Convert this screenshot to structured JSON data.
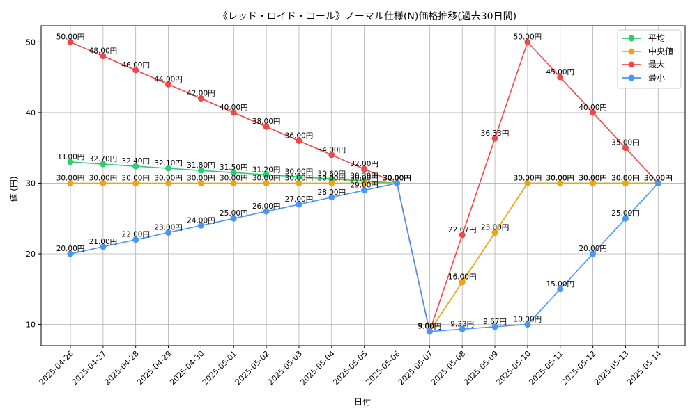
{
  "chart_data": {
    "type": "line",
    "title": "《レッド・ロイド・コール》ノーマル仕様(N)価格推移(過去30日間)",
    "xlabel": "日付",
    "ylabel": "値 (円)",
    "ylim": [
      7,
      52.3
    ],
    "yticks": [
      10,
      20,
      30,
      40,
      50
    ],
    "grid": true,
    "legend_position": "top-right",
    "label_suffix": "円",
    "categories": [
      "2025-04-26",
      "2025-04-27",
      "2025-04-28",
      "2025-04-29",
      "2025-04-30",
      "2025-05-01",
      "2025-05-02",
      "2025-05-03",
      "2025-05-04",
      "2025-05-05",
      "2025-05-06",
      "2025-05-07",
      "2025-05-08",
      "2025-05-09",
      "2025-05-10",
      "2025-05-11",
      "2025-05-12",
      "2025-05-13",
      "2025-05-14"
    ],
    "series": [
      {
        "name": "平均",
        "color": "#2ecc71",
        "values": [
          33.0,
          32.7,
          32.4,
          32.1,
          31.8,
          31.5,
          31.2,
          30.9,
          30.6,
          30.3,
          30.0,
          9.0,
          16.0,
          23.0,
          30.0,
          30.0,
          30.0,
          30.0,
          30.0
        ]
      },
      {
        "name": "中央値",
        "color": "#f5a30a",
        "values": [
          30.0,
          30.0,
          30.0,
          30.0,
          30.0,
          30.0,
          30.0,
          30.0,
          30.0,
          30.0,
          30.0,
          9.0,
          16.0,
          23.0,
          30.0,
          30.0,
          30.0,
          30.0,
          30.0
        ]
      },
      {
        "name": "最大",
        "color": "#f04848",
        "values": [
          50.0,
          48.0,
          46.0,
          44.0,
          42.0,
          40.0,
          38.0,
          36.0,
          34.0,
          32.0,
          30.0,
          9.0,
          22.67,
          36.33,
          50.0,
          45.0,
          40.0,
          35.0,
          30.0
        ]
      },
      {
        "name": "最小",
        "color": "#4a96f5",
        "values": [
          20.0,
          21.0,
          22.0,
          23.0,
          24.0,
          25.0,
          26.0,
          27.0,
          28.0,
          29.0,
          30.0,
          9.0,
          9.33,
          9.67,
          10.0,
          15.0,
          20.0,
          25.0,
          30.0
        ]
      }
    ]
  }
}
